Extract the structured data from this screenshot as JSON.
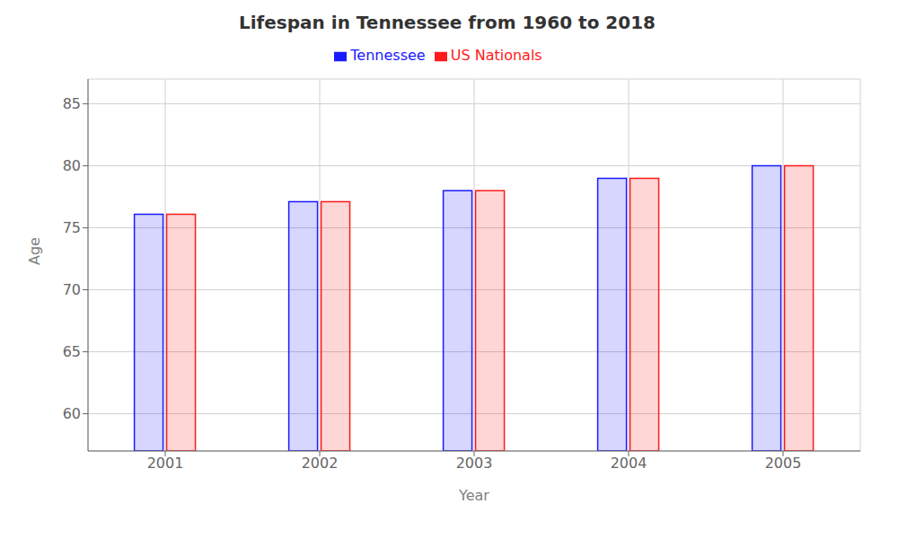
{
  "chart_data": {
    "type": "bar",
    "title": "Lifespan in Tennessee from 1960 to 2018",
    "x_label": "Year",
    "y_label": "Age",
    "categories": [
      "2001",
      "2002",
      "2003",
      "2004",
      "2005"
    ],
    "series": [
      {
        "name": "Tennessee",
        "color": "#1a1aff",
        "values": [
          76.1,
          77.1,
          78.0,
          79.0,
          80.0
        ]
      },
      {
        "name": "US Nationals",
        "color": "#ff1a1a",
        "values": [
          76.1,
          77.1,
          78.0,
          79.0,
          80.0
        ]
      }
    ],
    "ylim": [
      57,
      87
    ],
    "yticks": [
      60,
      65,
      70,
      75,
      80,
      85
    ],
    "grid": true,
    "legend": "top"
  }
}
